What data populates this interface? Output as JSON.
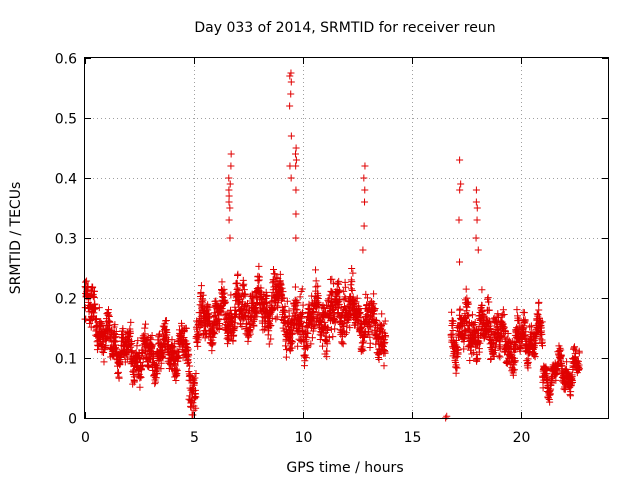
{
  "chart_data": {
    "type": "scatter",
    "title": "Day 033 of 2014, SRMTID for receiver reun",
    "xlabel": "GPS time / hours",
    "ylabel": "SRMTID / TECUs",
    "xlim": [
      0,
      24
    ],
    "ylim": [
      0,
      0.6
    ],
    "xticks": [
      0,
      5,
      10,
      15,
      20
    ],
    "yticks": [
      0,
      0.1,
      0.2,
      0.3,
      0.4,
      0.5,
      0.6
    ],
    "ytick_labels": [
      "0",
      "0.1",
      "0.2",
      "0.3",
      "0.4",
      "0.5",
      "0.6"
    ],
    "grid": true,
    "marker": "+",
    "color": "#e00000",
    "series_segments": [
      {
        "x_start": 0.0,
        "x_end": 0.7,
        "base_start": 0.18,
        "base_end": 0.17,
        "spread": 0.045
      },
      {
        "x_start": 0.7,
        "x_end": 2.5,
        "base_start": 0.14,
        "base_end": 0.1,
        "spread": 0.04
      },
      {
        "x_start": 2.5,
        "x_end": 4.6,
        "base_start": 0.1,
        "base_end": 0.12,
        "spread": 0.04
      },
      {
        "x_start": 4.6,
        "x_end": 5.1,
        "base_start": 0.1,
        "base_end": 0.04,
        "spread": 0.05
      },
      {
        "x_start": 5.1,
        "x_end": 6.5,
        "base_start": 0.15,
        "base_end": 0.18,
        "spread": 0.04
      },
      {
        "x_start": 6.5,
        "x_end": 9.2,
        "base_start": 0.17,
        "base_end": 0.2,
        "spread": 0.05
      },
      {
        "x_start": 9.2,
        "x_end": 11.5,
        "base_start": 0.15,
        "base_end": 0.17,
        "spread": 0.06
      },
      {
        "x_start": 11.5,
        "x_end": 13.8,
        "base_start": 0.19,
        "base_end": 0.14,
        "spread": 0.05
      },
      {
        "x_start": 16.8,
        "x_end": 19.0,
        "base_start": 0.14,
        "base_end": 0.15,
        "spread": 0.05
      },
      {
        "x_start": 19.0,
        "x_end": 21.0,
        "base_start": 0.12,
        "base_end": 0.14,
        "spread": 0.04
      },
      {
        "x_start": 21.0,
        "x_end": 22.7,
        "base_start": 0.07,
        "base_end": 0.08,
        "spread": 0.025
      }
    ],
    "spikes": [
      {
        "x": 6.65,
        "values": [
          0.3,
          0.33,
          0.35,
          0.36,
          0.37,
          0.38,
          0.39,
          0.4,
          0.42,
          0.44
        ]
      },
      {
        "x": 9.45,
        "values": [
          0.4,
          0.42,
          0.47,
          0.52,
          0.54,
          0.56,
          0.57,
          0.575
        ]
      },
      {
        "x": 9.65,
        "values": [
          0.3,
          0.34,
          0.38,
          0.42,
          0.43,
          0.44,
          0.45
        ]
      },
      {
        "x": 12.8,
        "values": [
          0.28,
          0.32,
          0.36,
          0.38,
          0.4,
          0.42
        ]
      },
      {
        "x": 17.2,
        "values": [
          0.26,
          0.33,
          0.38,
          0.39,
          0.43
        ]
      },
      {
        "x": 18.0,
        "values": [
          0.28,
          0.3,
          0.33,
          0.35,
          0.36,
          0.38
        ]
      }
    ],
    "isolated_points": [
      {
        "x": 16.55,
        "y": 0.0
      },
      {
        "x": 16.6,
        "y": 0.003
      },
      {
        "x": 4.95,
        "y": 0.005
      },
      {
        "x": 5.0,
        "y": 0.02
      }
    ]
  }
}
